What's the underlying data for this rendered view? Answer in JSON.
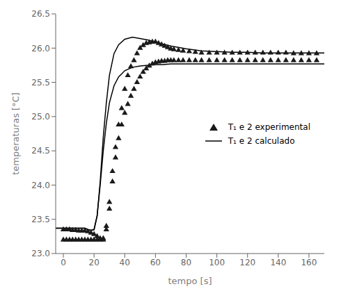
{
  "chart_data": {
    "type": "line",
    "title": "",
    "xlabel": "tempo [s]",
    "ylabel": "temperaturas [°C]",
    "xlim": [
      -5,
      170
    ],
    "ylim": [
      23.0,
      26.5
    ],
    "xticks": [
      0,
      20,
      40,
      60,
      80,
      100,
      120,
      140,
      160
    ],
    "yticks": [
      {
        "value": 23.0,
        "label": "23.0"
      },
      23.5,
      {
        "value": 24.0,
        "label": "24.0"
      },
      24.5,
      {
        "value": 25.0,
        "label": "25.0"
      },
      25.5,
      {
        "value": 26.0,
        "label": "26.0"
      },
      26.5
    ],
    "grid": false,
    "legend": "right",
    "series": [
      {
        "name": "T₁ e 2 experimental",
        "type": "scatter",
        "marker": "triangle",
        "color": "#1a1a1a",
        "x": [
          0,
          2,
          4,
          6,
          8,
          10,
          12,
          14,
          16,
          18,
          20,
          22,
          24,
          26,
          28,
          30,
          32,
          34,
          36,
          38,
          40,
          42,
          44,
          46,
          48,
          50,
          52,
          54,
          56,
          58,
          60,
          62,
          64,
          66,
          68,
          70,
          72,
          75,
          78,
          82,
          86,
          90,
          95,
          100,
          105,
          110,
          115,
          120,
          125,
          130,
          135,
          140,
          145,
          150,
          155,
          160,
          165
        ],
        "values": [
          23.35,
          23.35,
          23.35,
          23.34,
          23.34,
          23.33,
          23.33,
          23.33,
          23.32,
          23.3,
          23.28,
          23.25,
          23.22,
          23.22,
          23.4,
          23.75,
          24.2,
          24.55,
          24.88,
          25.12,
          25.4,
          25.6,
          25.73,
          25.82,
          25.92,
          26.0,
          26.04,
          26.07,
          26.08,
          26.09,
          26.09,
          26.07,
          26.05,
          26.03,
          26.01,
          25.99,
          25.98,
          25.97,
          25.96,
          25.95,
          25.94,
          25.93,
          25.93,
          25.93,
          25.93,
          25.93,
          25.93,
          25.93,
          25.93,
          25.93,
          25.93,
          25.93,
          25.93,
          25.92,
          25.92,
          25.92,
          25.92
        ]
      },
      {
        "name": "T₁ e 2 experimental",
        "type": "scatter",
        "marker": "triangle",
        "color": "#1a1a1a",
        "x": [
          0,
          2,
          4,
          6,
          8,
          10,
          12,
          14,
          16,
          18,
          20,
          22,
          24,
          26,
          28,
          30,
          32,
          34,
          36,
          38,
          40,
          42,
          44,
          46,
          48,
          50,
          52,
          54,
          56,
          58,
          60,
          62,
          64,
          66,
          68,
          70,
          72,
          75,
          78,
          82,
          86,
          90,
          95,
          100,
          105,
          110,
          115,
          120,
          125,
          130,
          135,
          140,
          145,
          150,
          155,
          160,
          165
        ],
        "values": [
          23.2,
          23.2,
          23.2,
          23.2,
          23.2,
          23.2,
          23.2,
          23.2,
          23.2,
          23.2,
          23.2,
          23.2,
          23.2,
          23.2,
          23.35,
          23.65,
          24.05,
          24.4,
          24.68,
          24.88,
          25.05,
          25.18,
          25.3,
          25.4,
          25.5,
          25.58,
          25.65,
          25.7,
          25.74,
          25.77,
          25.79,
          25.8,
          25.81,
          25.81,
          25.82,
          25.82,
          25.82,
          25.82,
          25.82,
          25.82,
          25.82,
          25.82,
          25.82,
          25.82,
          25.82,
          25.82,
          25.82,
          25.82,
          25.82,
          25.82,
          25.82,
          25.82,
          25.82,
          25.82,
          25.82,
          25.82,
          25.82
        ]
      },
      {
        "name": "T₁ e 2 calculado",
        "type": "line",
        "line_style": "solid",
        "color": "#000000",
        "x": [
          -5,
          0,
          5,
          10,
          14,
          16,
          18,
          20,
          22,
          24,
          26,
          28,
          30,
          33,
          36,
          40,
          45,
          50,
          55,
          60,
          65,
          70,
          80,
          90,
          100,
          110,
          120,
          130,
          140,
          150,
          160,
          170
        ],
        "values": [
          23.37,
          23.37,
          23.37,
          23.37,
          23.37,
          23.35,
          23.34,
          23.35,
          23.55,
          24.05,
          24.7,
          25.2,
          25.6,
          25.92,
          26.05,
          26.13,
          26.16,
          26.14,
          26.12,
          26.09,
          26.06,
          26.03,
          25.99,
          25.96,
          25.95,
          25.94,
          25.94,
          25.93,
          25.93,
          25.93,
          25.93,
          25.93
        ]
      },
      {
        "name": "T₁ e 2 calculado",
        "type": "line",
        "line_style": "solid",
        "color": "#000000",
        "x": [
          -5,
          0,
          5,
          10,
          14,
          16,
          18,
          20,
          22,
          24,
          26,
          28,
          30,
          33,
          36,
          40,
          45,
          50,
          55,
          60,
          65,
          70,
          80,
          90,
          100,
          110,
          120,
          130,
          140,
          150,
          160,
          170
        ],
        "values": [
          23.37,
          23.37,
          23.37,
          23.37,
          23.37,
          23.35,
          23.34,
          23.35,
          23.55,
          24.0,
          24.5,
          24.9,
          25.2,
          25.45,
          25.58,
          25.67,
          25.72,
          25.74,
          25.75,
          25.76,
          25.76,
          25.77,
          25.77,
          25.77,
          25.77,
          25.77,
          25.77,
          25.77,
          25.77,
          25.77,
          25.77,
          25.77
        ]
      }
    ]
  }
}
